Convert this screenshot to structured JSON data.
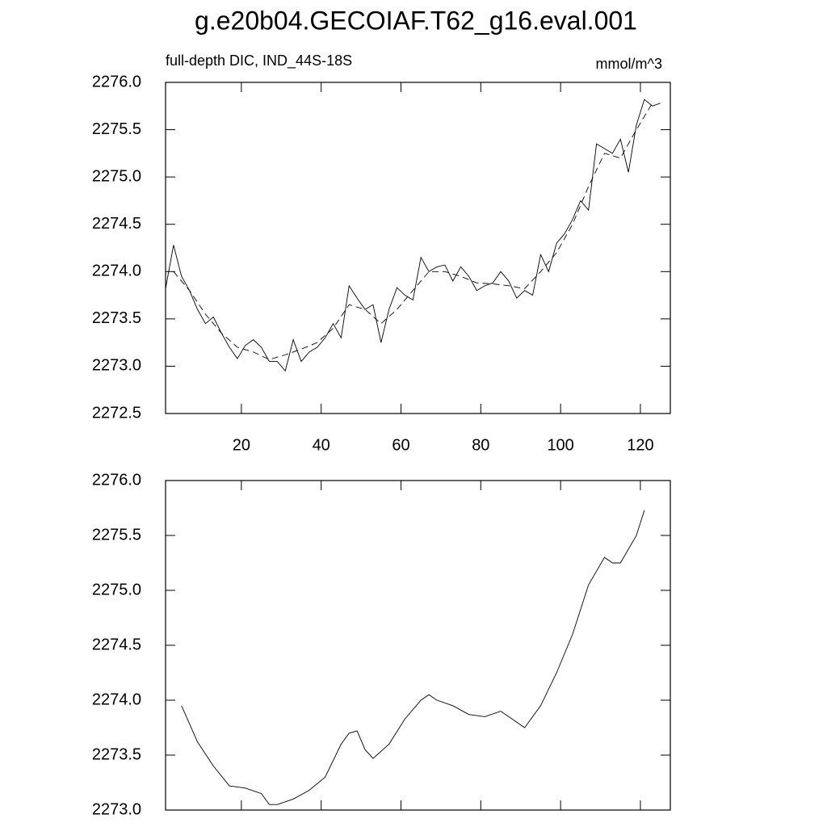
{
  "chart_data": [
    {
      "type": "line",
      "title": "g.e20b04.GECOIAF.T62_g16.eval.001",
      "subtitle": "full-depth DIC, IND_44S-18S",
      "units": "mmol/m^3",
      "xlim": [
        1,
        127.5
      ],
      "xticks": [
        20,
        40,
        60,
        80,
        100,
        120
      ],
      "ylim": [
        2272.5,
        2276
      ],
      "yticks": [
        {
          "value": 2272.5,
          "label": "2272.5"
        },
        {
          "value": 2273,
          "label": "2273.0"
        },
        2273.5,
        {
          "value": 2274,
          "label": "2274.0"
        },
        2274.5,
        {
          "value": 2275,
          "label": "2275.0"
        },
        2275.5,
        {
          "value": 2276,
          "label": "2276.0"
        }
      ],
      "series": [
        {
          "color": "#000000",
          "linestyle": "solid",
          "x": [
            1,
            3,
            5,
            7,
            9,
            11,
            13,
            15,
            17,
            19,
            21,
            23,
            25,
            27,
            29,
            31,
            33,
            35,
            37,
            39,
            41,
            43,
            45,
            47,
            49,
            51,
            53,
            55,
            57,
            59,
            61,
            63,
            65,
            67,
            69,
            71,
            73,
            75,
            77,
            79,
            81,
            83,
            85,
            87,
            89,
            91,
            93,
            95,
            97,
            99,
            101,
            103,
            105,
            107,
            109,
            111,
            113,
            115,
            117,
            119,
            121,
            123,
            125
          ],
          "values": [
            2273.82,
            2274.28,
            2273.95,
            2273.8,
            2273.6,
            2273.45,
            2273.52,
            2273.35,
            2273.2,
            2273.08,
            2273.22,
            2273.28,
            2273.2,
            2273.05,
            2273.05,
            2272.95,
            2273.28,
            2273.05,
            2273.15,
            2273.2,
            2273.3,
            2273.45,
            2273.3,
            2273.85,
            2273.72,
            2273.6,
            2273.65,
            2273.25,
            2273.6,
            2273.83,
            2273.75,
            2273.7,
            2274.15,
            2274.0,
            2274.05,
            2274.07,
            2273.9,
            2274.05,
            2273.95,
            2273.8,
            2273.85,
            2273.88,
            2274.0,
            2273.9,
            2273.72,
            2273.8,
            2273.75,
            2274.18,
            2274.0,
            2274.3,
            2274.4,
            2274.55,
            2274.75,
            2274.65,
            2275.35,
            2275.3,
            2275.25,
            2275.4,
            2275.05,
            2275.55,
            2275.82,
            2275.75,
            2275.78
          ]
        },
        {
          "color": "#000000",
          "linestyle": "dashed",
          "x": [
            3,
            7,
            11,
            15,
            19,
            23,
            27,
            31,
            35,
            39,
            43,
            47,
            51,
            55,
            59,
            63,
            67,
            71,
            75,
            79,
            83,
            87,
            91,
            95,
            99,
            103,
            107,
            111,
            115,
            119,
            123
          ],
          "values": [
            2274.0,
            2273.8,
            2273.55,
            2273.35,
            2273.2,
            2273.15,
            2273.07,
            2273.12,
            2273.18,
            2273.25,
            2273.4,
            2273.65,
            2273.6,
            2273.45,
            2273.6,
            2273.8,
            2274.0,
            2274.0,
            2273.95,
            2273.88,
            2273.87,
            2273.85,
            2273.82,
            2274.0,
            2274.2,
            2274.5,
            2274.9,
            2275.25,
            2275.2,
            2275.5,
            2275.78
          ]
        }
      ]
    },
    {
      "type": "line",
      "xlim": [
        1,
        127.5
      ],
      "xticks": [
        20,
        40,
        60,
        80,
        100,
        120
      ],
      "xtick_labels": false,
      "ylim": [
        2273,
        2276
      ],
      "yticks": [
        {
          "value": 2273,
          "label": "2273.0"
        },
        2273.5,
        {
          "value": 2274,
          "label": "2274.0"
        },
        2274.5,
        {
          "value": 2275,
          "label": "2275.0"
        },
        2275.5,
        {
          "value": 2276,
          "label": "2276.0"
        }
      ],
      "series": [
        {
          "color": "#000000",
          "linestyle": "solid",
          "x": [
            5,
            9,
            13,
            17,
            21,
            25,
            27,
            29,
            33,
            37,
            41,
            45,
            47,
            49,
            51,
            53,
            57,
            61,
            65,
            67,
            69,
            73,
            77,
            81,
            85,
            87,
            91,
            95,
            99,
            103,
            107,
            111,
            113,
            115,
            119,
            121
          ],
          "values": [
            2273.95,
            2273.62,
            2273.4,
            2273.22,
            2273.2,
            2273.15,
            2273.05,
            2273.05,
            2273.1,
            2273.18,
            2273.3,
            2273.6,
            2273.7,
            2273.72,
            2273.55,
            2273.47,
            2273.6,
            2273.83,
            2274.0,
            2274.05,
            2274.0,
            2273.95,
            2273.87,
            2273.85,
            2273.9,
            2273.85,
            2273.75,
            2273.95,
            2274.25,
            2274.6,
            2275.05,
            2275.3,
            2275.25,
            2275.25,
            2275.5,
            2275.73
          ]
        }
      ]
    }
  ]
}
